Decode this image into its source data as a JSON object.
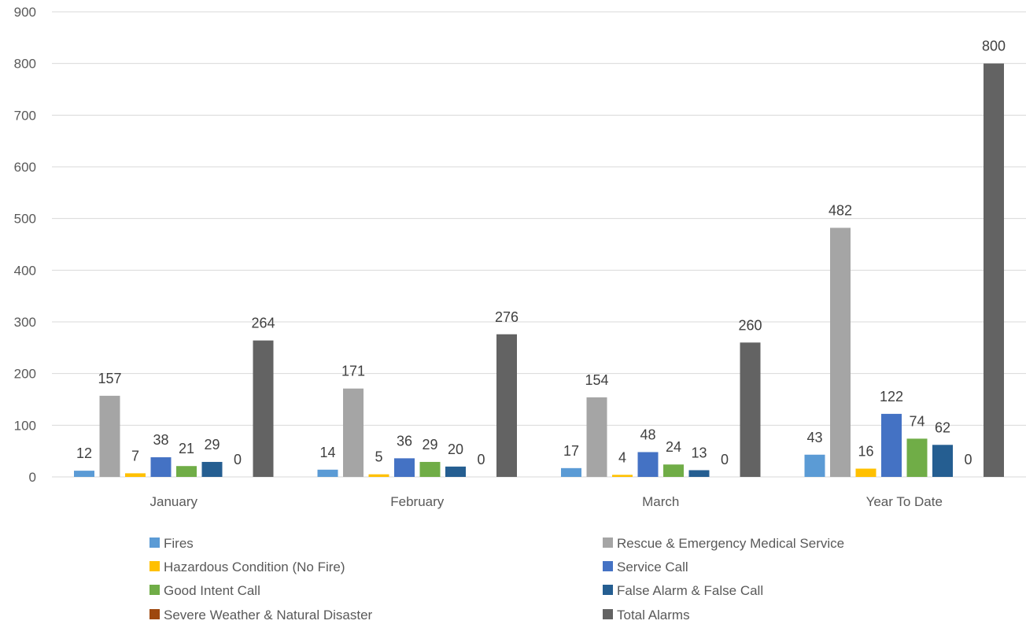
{
  "chart_data": {
    "type": "bar",
    "title": "",
    "xlabel": "",
    "ylabel": "",
    "ylim": [
      0,
      900
    ],
    "yticks": [
      0,
      100,
      200,
      300,
      400,
      500,
      600,
      700,
      800,
      900
    ],
    "grid": true,
    "legend_position": "bottom",
    "categories": [
      "January",
      "February",
      "March",
      "Year To Date"
    ],
    "series": [
      {
        "name": "Fires",
        "color": "#5b9bd5",
        "values": [
          12,
          14,
          17,
          43
        ]
      },
      {
        "name": "Rescue & Emergency Medical Service",
        "color": "#a5a5a5",
        "values": [
          157,
          171,
          154,
          482
        ]
      },
      {
        "name": "Hazardous Condition (No Fire)",
        "color": "#ffc000",
        "values": [
          7,
          5,
          4,
          16
        ]
      },
      {
        "name": "Service Call",
        "color": "#4472c4",
        "values": [
          38,
          36,
          48,
          122
        ]
      },
      {
        "name": "Good Intent Call",
        "color": "#70ad47",
        "values": [
          21,
          29,
          24,
          74
        ]
      },
      {
        "name": "False Alarm & False Call",
        "color": "#255e91",
        "values": [
          29,
          20,
          13,
          62
        ]
      },
      {
        "name": "Severe Weather & Natural Disaster",
        "color": "#9e480e",
        "values": [
          0,
          0,
          0,
          0
        ]
      },
      {
        "name": "Total Alarms",
        "color": "#636363",
        "values": [
          264,
          276,
          260,
          800
        ]
      }
    ]
  }
}
